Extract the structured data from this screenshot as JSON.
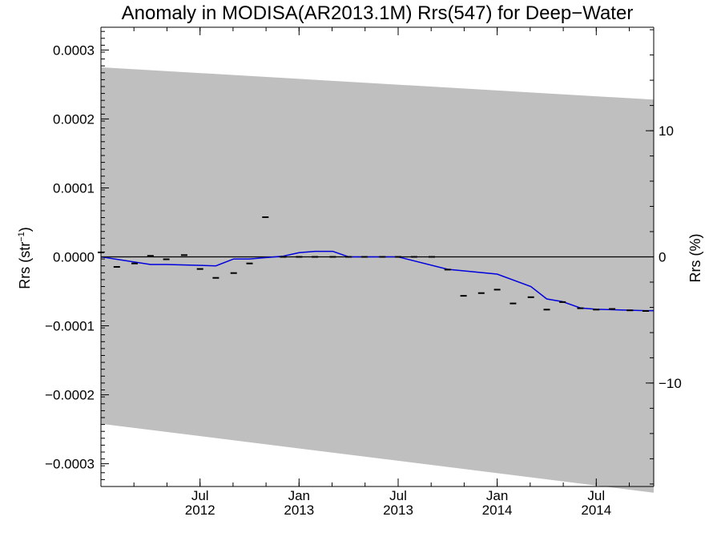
{
  "chart_data": {
    "type": "line",
    "title": "Anomaly in MODISA(AR2013.1M) Rrs(547) for Deep−Water",
    "ylabel_left_main": "Rrs (str",
    "ylabel_left_sup": "−1",
    "ylabel_left_close": ")",
    "ylabel_right": "Rrs (%)",
    "xlabel": "",
    "ylim_left": [
      -0.000333,
      0.000333
    ],
    "ylim_right": [
      -18.2,
      18.2
    ],
    "xlim": [
      2012.0,
      2014.79
    ],
    "grid": false,
    "left_ticks": [
      {
        "value": 0.0003,
        "label": "0.0003"
      },
      {
        "value": 0.0002,
        "label": "0.0002"
      },
      {
        "value": 0.0001,
        "label": "0.0001"
      },
      {
        "value": 0.0,
        "label": "0.0000"
      },
      {
        "value": -0.0001,
        "label": "−0.0001"
      },
      {
        "value": -0.0002,
        "label": "−0.0002"
      },
      {
        "value": -0.0003,
        "label": "−0.0003"
      }
    ],
    "right_ticks": [
      {
        "value": 10,
        "label": "10"
      },
      {
        "value": 0,
        "label": "0"
      },
      {
        "value": -10,
        "label": "−10"
      }
    ],
    "x_ticks": [
      {
        "value": 2012.5,
        "month": "Jul",
        "year": "2012"
      },
      {
        "value": 2013.0,
        "month": "Jan",
        "year": "2013"
      },
      {
        "value": 2013.5,
        "month": "Jul",
        "year": "2013"
      },
      {
        "value": 2014.0,
        "month": "Jan",
        "year": "2014"
      },
      {
        "value": 2014.5,
        "month": "Jul",
        "year": "2014"
      }
    ],
    "uncertainty_band": {
      "x": [
        2012.0,
        2014.79
      ],
      "upper": [
        0.000275,
        0.000228
      ],
      "lower": [
        -0.000242,
        -0.000342
      ],
      "color": "#bfbfbf"
    },
    "zero_line": {
      "value": 0.0,
      "color": "#000000"
    },
    "series": [
      {
        "style": "markers",
        "color": "#000000",
        "x": [
          2012.0,
          2012.08,
          2012.17,
          2012.25,
          2012.33,
          2012.42,
          2012.5,
          2012.58,
          2012.67,
          2012.75,
          2012.83,
          2012.92,
          2013.0,
          2013.08,
          2013.17,
          2013.25,
          2013.33,
          2013.42,
          2013.5,
          2013.58,
          2013.67,
          2013.75,
          2013.83,
          2013.92,
          2014.0,
          2014.08,
          2014.17,
          2014.25,
          2014.33,
          2014.42,
          2014.5,
          2014.58,
          2014.67,
          2014.75
        ],
        "y": [
          6.5e-06,
          -1.45e-05,
          -9.5e-06,
          1.5e-06,
          -3.5e-06,
          2.5e-06,
          -1.75e-05,
          -3.05e-05,
          -2.35e-05,
          -9.5e-06,
          5.75e-05,
          0.0,
          0.0,
          0.0,
          0.0,
          0.0,
          0.0,
          0.0,
          0.0,
          0.0,
          0.0,
          -1.85e-05,
          -5.65e-05,
          -5.25e-05,
          -4.75e-05,
          -6.75e-05,
          -5.85e-05,
          -7.65e-05,
          -6.55e-05,
          -7.45e-05,
          -7.65e-05,
          -7.55e-05,
          -7.75e-05,
          -7.85e-05
        ]
      },
      {
        "style": "line",
        "color": "#0000dd",
        "x": [
          2012.0,
          2012.25,
          2012.33,
          2012.58,
          2012.67,
          2012.75,
          2012.92,
          2013.0,
          2013.08,
          2013.17,
          2013.25,
          2013.33,
          2013.5,
          2013.75,
          2014.0,
          2014.17,
          2014.25,
          2014.33,
          2014.42,
          2014.5,
          2014.75,
          2014.79
        ],
        "y": [
          0.0,
          -1.1e-05,
          -1.1e-05,
          -1.3e-05,
          -3e-06,
          -3e-06,
          1e-06,
          6e-06,
          8e-06,
          8e-06,
          0.0,
          0.0,
          0.0,
          -1.8e-05,
          -2.5e-05,
          -4.3e-05,
          -6.1e-05,
          -6.5e-05,
          -7.4e-05,
          -7.6e-05,
          -7.8e-05,
          -7.8e-05
        ]
      }
    ]
  }
}
